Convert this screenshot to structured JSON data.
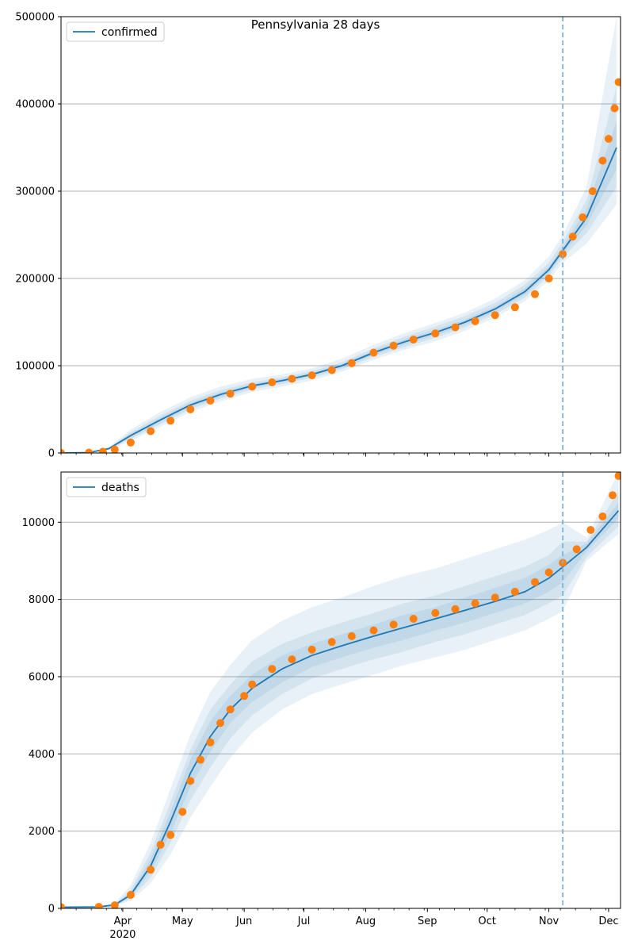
{
  "title": "Pennsylvania 28 days",
  "colors": {
    "model_line": "#1f77b4",
    "observed": "#ff7f0e",
    "band": "#1f77b4",
    "grid": "#b0b0b0",
    "forecast_marker": "#7fb2d8"
  },
  "x_ticks": [
    {
      "label": "Apr",
      "sublabel": "2020",
      "day": 31
    },
    {
      "label": "May",
      "day": 61
    },
    {
      "label": "Jun",
      "day": 92
    },
    {
      "label": "Jul",
      "day": 122
    },
    {
      "label": "Aug",
      "day": 153
    },
    {
      "label": "Sep",
      "day": 184
    },
    {
      "label": "Oct",
      "day": 214
    },
    {
      "label": "Nov",
      "day": 245
    },
    {
      "label": "Dec",
      "day": 275
    }
  ],
  "chart_data": [
    {
      "type": "line",
      "legend": "confirmed",
      "legend_position": "top-left",
      "grid": "y",
      "ylim": [
        0,
        500000
      ],
      "y_ticks": [
        "0",
        "100000",
        "200000",
        "300000",
        "400000",
        "500000"
      ],
      "y_tick_values": [
        0,
        100000,
        200000,
        300000,
        400000,
        500000
      ],
      "forecast_start": "2020-11-08",
      "model": {
        "x": [
          "2020-03-01",
          "2020-03-15",
          "2020-03-25",
          "2020-04-05",
          "2020-04-20",
          "2020-05-05",
          "2020-05-20",
          "2020-06-05",
          "2020-06-20",
          "2020-07-05",
          "2020-07-20",
          "2020-08-05",
          "2020-08-20",
          "2020-09-05",
          "2020-09-20",
          "2020-10-05",
          "2020-10-20",
          "2020-11-01",
          "2020-11-08",
          "2020-11-20",
          "2020-12-05"
        ],
        "y": [
          0,
          500,
          5000,
          20000,
          38000,
          55000,
          67000,
          77000,
          83000,
          90000,
          100000,
          115000,
          127000,
          138000,
          150000,
          165000,
          185000,
          210000,
          232000,
          270000,
          350000
        ]
      },
      "bands": [
        {
          "level": "outer",
          "lower": [
            0,
            300,
            3500,
            14000,
            30000,
            47000,
            59000,
            70000,
            76000,
            83000,
            93000,
            107000,
            118000,
            128000,
            140000,
            155000,
            174000,
            198000,
            218000,
            240000,
            285000
          ],
          "upper": [
            0,
            800,
            7000,
            27000,
            47000,
            64000,
            76000,
            85000,
            90000,
            97000,
            108000,
            124000,
            137000,
            149000,
            161000,
            177000,
            198000,
            225000,
            250000,
            305000,
            500000
          ]
        },
        {
          "level": "middle",
          "lower": [
            0,
            380,
            4000,
            16000,
            33000,
            50000,
            62000,
            73000,
            79000,
            86000,
            96000,
            110000,
            121000,
            132000,
            144000,
            159000,
            178000,
            203000,
            224000,
            252000,
            305000
          ],
          "upper": [
            0,
            680,
            6200,
            24000,
            43000,
            60000,
            72000,
            81000,
            87000,
            94000,
            104000,
            120000,
            133000,
            145000,
            157000,
            172000,
            193000,
            218000,
            242000,
            290000,
            420000
          ]
        },
        {
          "level": "inner",
          "lower": [
            0,
            440,
            4500,
            18000,
            35500,
            52500,
            64500,
            75000,
            81000,
            88000,
            98000,
            112500,
            124000,
            135000,
            147000,
            162000,
            181500,
            206500,
            228000,
            261000,
            325000
          ],
          "upper": [
            0,
            580,
            5600,
            22000,
            40500,
            57500,
            69500,
            79000,
            85000,
            92000,
            102000,
            117500,
            130000,
            141000,
            153000,
            168000,
            189000,
            213500,
            236000,
            280000,
            380000
          ]
        }
      ],
      "observed": {
        "x": [
          "2020-03-01",
          "2020-03-15",
          "2020-03-22",
          "2020-03-28",
          "2020-04-05",
          "2020-04-15",
          "2020-04-25",
          "2020-05-05",
          "2020-05-15",
          "2020-05-25",
          "2020-06-05",
          "2020-06-15",
          "2020-06-25",
          "2020-07-05",
          "2020-07-15",
          "2020-07-25",
          "2020-08-05",
          "2020-08-15",
          "2020-08-25",
          "2020-09-05",
          "2020-09-15",
          "2020-09-25",
          "2020-10-05",
          "2020-10-15",
          "2020-10-25",
          "2020-11-01",
          "2020-11-08",
          "2020-11-13",
          "2020-11-18",
          "2020-11-23",
          "2020-11-28",
          "2020-12-01",
          "2020-12-04",
          "2020-12-06"
        ],
        "y": [
          0,
          500,
          1500,
          4000,
          12000,
          25000,
          37000,
          50000,
          60000,
          68000,
          76000,
          81000,
          85000,
          89000,
          95000,
          103000,
          115000,
          123000,
          130000,
          137000,
          144000,
          151000,
          158000,
          167000,
          182000,
          200000,
          228000,
          248000,
          270000,
          300000,
          335000,
          360000,
          395000,
          425000
        ]
      }
    },
    {
      "type": "line",
      "legend": "deaths",
      "legend_position": "top-left",
      "grid": "y",
      "ylim": [
        0,
        11300
      ],
      "y_ticks": [
        "0",
        "2000",
        "4000",
        "6000",
        "8000",
        "10000"
      ],
      "y_tick_values": [
        0,
        2000,
        4000,
        6000,
        8000,
        10000
      ],
      "forecast_start": "2020-11-08",
      "model": {
        "x": [
          "2020-03-01",
          "2020-03-20",
          "2020-03-28",
          "2020-04-05",
          "2020-04-15",
          "2020-04-25",
          "2020-05-05",
          "2020-05-15",
          "2020-05-25",
          "2020-06-05",
          "2020-06-20",
          "2020-07-05",
          "2020-07-20",
          "2020-08-05",
          "2020-08-20",
          "2020-09-05",
          "2020-09-20",
          "2020-10-05",
          "2020-10-20",
          "2020-11-01",
          "2020-11-08",
          "2020-11-20",
          "2020-12-06"
        ],
        "y": [
          30,
          40,
          90,
          350,
          1100,
          2250,
          3500,
          4450,
          5150,
          5700,
          6200,
          6550,
          6800,
          7050,
          7270,
          7500,
          7720,
          7950,
          8200,
          8550,
          8840,
          9350,
          10300
        ]
      },
      "bands": [
        {
          "level": "outer",
          "lower": [
            30,
            35,
            60,
            200,
            650,
            1400,
            2350,
            3150,
            3900,
            4550,
            5150,
            5550,
            5800,
            6050,
            6300,
            6500,
            6700,
            6950,
            7200,
            7500,
            7700,
            9000,
            9700
          ],
          "upper": [
            30,
            50,
            140,
            600,
            1700,
            3100,
            4500,
            5600,
            6300,
            6950,
            7450,
            7800,
            8050,
            8350,
            8600,
            8800,
            9050,
            9300,
            9550,
            9800,
            10000,
            9600,
            11300
          ]
        },
        {
          "level": "middle",
          "lower": [
            30,
            37,
            70,
            250,
            800,
            1700,
            2800,
            3650,
            4400,
            5000,
            5550,
            5950,
            6200,
            6450,
            6650,
            6900,
            7100,
            7350,
            7600,
            7900,
            8100,
            9100,
            9900
          ],
          "upper": [
            30,
            45,
            115,
            480,
            1450,
            2750,
            4100,
            5150,
            5800,
            6400,
            6850,
            7150,
            7400,
            7650,
            7900,
            8100,
            8350,
            8600,
            8850,
            9150,
            9500,
            9500,
            10800
          ]
        },
        {
          "level": "inner",
          "lower": [
            30,
            38,
            80,
            300,
            950,
            1950,
            3150,
            4050,
            4800,
            5350,
            5850,
            6250,
            6500,
            6750,
            6950,
            7200,
            7400,
            7650,
            7900,
            8200,
            8450,
            9250,
            10100
          ],
          "upper": [
            30,
            42,
            100,
            410,
            1280,
            2500,
            3850,
            4850,
            5500,
            6050,
            6550,
            6850,
            7100,
            7350,
            7600,
            7800,
            8050,
            8300,
            8550,
            8900,
            9150,
            9450,
            10500
          ]
        }
      ],
      "observed": {
        "x": [
          "2020-03-01",
          "2020-03-20",
          "2020-03-28",
          "2020-04-05",
          "2020-04-15",
          "2020-04-20",
          "2020-04-25",
          "2020-05-01",
          "2020-05-05",
          "2020-05-10",
          "2020-05-15",
          "2020-05-20",
          "2020-05-25",
          "2020-06-01",
          "2020-06-05",
          "2020-06-15",
          "2020-06-25",
          "2020-07-05",
          "2020-07-15",
          "2020-07-25",
          "2020-08-05",
          "2020-08-15",
          "2020-08-25",
          "2020-09-05",
          "2020-09-15",
          "2020-09-25",
          "2020-10-05",
          "2020-10-15",
          "2020-10-25",
          "2020-11-01",
          "2020-11-08",
          "2020-11-15",
          "2020-11-22",
          "2020-11-28",
          "2020-12-03",
          "2020-12-06"
        ],
        "y": [
          30,
          40,
          80,
          350,
          1000,
          1650,
          1900,
          2500,
          3300,
          3850,
          4300,
          4800,
          5150,
          5500,
          5800,
          6200,
          6450,
          6700,
          6900,
          7050,
          7200,
          7350,
          7500,
          7650,
          7750,
          7900,
          8050,
          8200,
          8450,
          8700,
          8950,
          9300,
          9800,
          10150,
          10700,
          11200
        ]
      }
    }
  ]
}
